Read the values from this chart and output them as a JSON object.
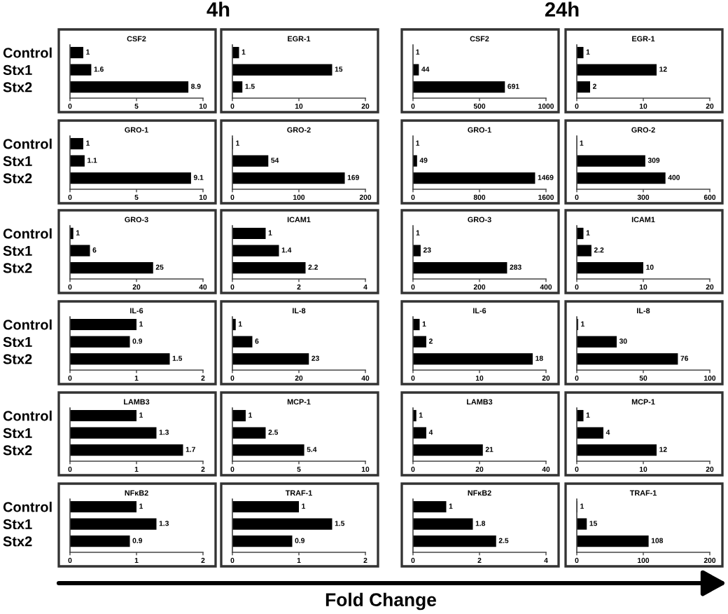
{
  "chart_data": [
    {
      "type": "bar",
      "orientation": "horizontal",
      "title": "CSF2",
      "annotations": [
        "4h"
      ],
      "categories": [
        "Control",
        "Stx1",
        "Stx2"
      ],
      "values": [
        1,
        1.6,
        8.9
      ],
      "color": "#000000",
      "xlim": [
        0,
        10
      ],
      "xticks": [
        0,
        5,
        10
      ],
      "data_labels": true
    },
    {
      "type": "bar",
      "orientation": "horizontal",
      "title": "EGR-1",
      "categories": [
        "Control",
        "Stx1",
        "Stx2"
      ],
      "values": [
        1,
        15,
        1.5
      ],
      "color": "#000000",
      "xlim": [
        0,
        20
      ],
      "xticks": [
        0,
        10,
        20
      ],
      "data_labels": true,
      "tick_labels": "x"
    },
    {
      "type": "bar",
      "orientation": "horizontal",
      "title": "CSF2",
      "annotations": [
        "24h"
      ],
      "categories": [
        "Control",
        "Stx1",
        "Stx2"
      ],
      "values": [
        1,
        44,
        691
      ],
      "color": "#000000",
      "xlim": [
        0,
        1000
      ],
      "xticks": [
        0,
        500,
        1000
      ],
      "data_labels": true,
      "tick_labels": "x"
    },
    {
      "type": "bar",
      "orientation": "horizontal",
      "title": "EGR-1",
      "categories": [
        "Control",
        "Stx1",
        "Stx2"
      ],
      "values": [
        1,
        12,
        2
      ],
      "color": "#000000",
      "xlim": [
        0,
        20
      ],
      "xticks": [
        0,
        10,
        20
      ],
      "data_labels": true,
      "tick_labels": "x"
    },
    {
      "type": "bar",
      "orientation": "horizontal",
      "title": "GRO-1",
      "categories": [
        "Control",
        "Stx1",
        "Stx2"
      ],
      "values": [
        1,
        1.1,
        9.1
      ],
      "color": "#000000",
      "xlim": [
        0,
        10
      ],
      "xticks": [
        0,
        5,
        10
      ],
      "data_labels": true
    },
    {
      "type": "bar",
      "orientation": "horizontal",
      "title": "GRO-2",
      "categories": [
        "Control",
        "Stx1",
        "Stx2"
      ],
      "values": [
        1,
        54,
        169
      ],
      "color": "#000000",
      "xlim": [
        0,
        200
      ],
      "xticks": [
        0,
        100,
        200
      ],
      "data_labels": true,
      "tick_labels": "x"
    },
    {
      "type": "bar",
      "orientation": "horizontal",
      "title": "GRO-1",
      "categories": [
        "Control",
        "Stx1",
        "Stx2"
      ],
      "values": [
        1,
        49,
        1469
      ],
      "color": "#000000",
      "xlim": [
        0,
        1600
      ],
      "xticks": [
        0,
        800,
        1600
      ],
      "data_labels": true,
      "tick_labels": "x"
    },
    {
      "type": "bar",
      "orientation": "horizontal",
      "title": "GRO-2",
      "categories": [
        "Control",
        "Stx1",
        "Stx2"
      ],
      "values": [
        1,
        309,
        400
      ],
      "color": "#000000",
      "xlim": [
        0,
        600
      ],
      "xticks": [
        0,
        300,
        600
      ],
      "data_labels": true,
      "tick_labels": "x"
    },
    {
      "type": "bar",
      "orientation": "horizontal",
      "title": "GRO-3",
      "categories": [
        "Control",
        "Stx1",
        "Stx2"
      ],
      "values": [
        1,
        6,
        25
      ],
      "color": "#000000",
      "xlim": [
        0,
        40
      ],
      "xticks": [
        0,
        20,
        40
      ],
      "data_labels": true
    },
    {
      "type": "bar",
      "orientation": "horizontal",
      "title": "ICAM1",
      "categories": [
        "Control",
        "Stx1",
        "Stx2"
      ],
      "values": [
        1,
        1.4,
        2.2
      ],
      "color": "#000000",
      "xlim": [
        0,
        4
      ],
      "xticks": [
        0,
        2,
        4
      ],
      "data_labels": true,
      "tick_labels": "x"
    },
    {
      "type": "bar",
      "orientation": "horizontal",
      "title": "GRO-3",
      "categories": [
        "Control",
        "Stx1",
        "Stx2"
      ],
      "values": [
        1,
        23,
        283
      ],
      "color": "#000000",
      "xlim": [
        0,
        400
      ],
      "xticks": [
        0,
        200,
        400
      ],
      "data_labels": true,
      "tick_labels": "x"
    },
    {
      "type": "bar",
      "orientation": "horizontal",
      "title": "ICAM1",
      "categories": [
        "Control",
        "Stx1",
        "Stx2"
      ],
      "values": [
        1,
        2.2,
        10
      ],
      "color": "#000000",
      "xlim": [
        0,
        20
      ],
      "xticks": [
        0,
        10,
        20
      ],
      "data_labels": true,
      "tick_labels": "x"
    },
    {
      "type": "bar",
      "orientation": "horizontal",
      "title": "IL-6",
      "categories": [
        "Control",
        "Stx1",
        "Stx2"
      ],
      "values": [
        1,
        0.9,
        1.5
      ],
      "color": "#000000",
      "xlim": [
        0,
        2
      ],
      "xticks": [
        0,
        1,
        2
      ],
      "data_labels": true
    },
    {
      "type": "bar",
      "orientation": "horizontal",
      "title": "IL-8",
      "categories": [
        "Control",
        "Stx1",
        "Stx2"
      ],
      "values": [
        1,
        6,
        23
      ],
      "color": "#000000",
      "xlim": [
        0,
        40
      ],
      "xticks": [
        0,
        20,
        40
      ],
      "data_labels": true,
      "tick_labels": "x"
    },
    {
      "type": "bar",
      "orientation": "horizontal",
      "title": "IL-6",
      "categories": [
        "Control",
        "Stx1",
        "Stx2"
      ],
      "values": [
        1,
        2,
        18
      ],
      "color": "#000000",
      "xlim": [
        0,
        20
      ],
      "xticks": [
        0,
        10,
        20
      ],
      "data_labels": true,
      "tick_labels": "x"
    },
    {
      "type": "bar",
      "orientation": "horizontal",
      "title": "IL-8",
      "categories": [
        "Control",
        "Stx1",
        "Stx2"
      ],
      "values": [
        1,
        30,
        76
      ],
      "color": "#000000",
      "xlim": [
        0,
        100
      ],
      "xticks": [
        0,
        50,
        100
      ],
      "data_labels": true,
      "tick_labels": "x"
    },
    {
      "type": "bar",
      "orientation": "horizontal",
      "title": "LAMB3",
      "categories": [
        "Control",
        "Stx1",
        "Stx2"
      ],
      "values": [
        1,
        1.3,
        1.7
      ],
      "color": "#000000",
      "xlim": [
        0,
        2
      ],
      "xticks": [
        0,
        1,
        2
      ],
      "data_labels": true
    },
    {
      "type": "bar",
      "orientation": "horizontal",
      "title": "MCP-1",
      "categories": [
        "Control",
        "Stx1",
        "Stx2"
      ],
      "values": [
        1,
        2.5,
        5.4
      ],
      "color": "#000000",
      "xlim": [
        0,
        10
      ],
      "xticks": [
        0,
        5,
        10
      ],
      "data_labels": true,
      "tick_labels": "x"
    },
    {
      "type": "bar",
      "orientation": "horizontal",
      "title": "LAMB3",
      "categories": [
        "Control",
        "Stx1",
        "Stx2"
      ],
      "values": [
        1,
        4,
        21
      ],
      "color": "#000000",
      "xlim": [
        0,
        40
      ],
      "xticks": [
        0,
        20,
        40
      ],
      "data_labels": true,
      "tick_labels": "x"
    },
    {
      "type": "bar",
      "orientation": "horizontal",
      "title": "MCP-1",
      "categories": [
        "Control",
        "Stx1",
        "Stx2"
      ],
      "values": [
        1,
        4,
        12
      ],
      "color": "#000000",
      "xlim": [
        0,
        20
      ],
      "xticks": [
        0,
        10,
        20
      ],
      "data_labels": true,
      "tick_labels": "x"
    },
    {
      "type": "bar",
      "orientation": "horizontal",
      "title": "NFκB2",
      "categories": [
        "Control",
        "Stx1",
        "Stx2"
      ],
      "values": [
        1,
        1.3,
        0.9
      ],
      "color": "#000000",
      "xlim": [
        0,
        2
      ],
      "xticks": [
        0,
        1,
        2
      ],
      "data_labels": true
    },
    {
      "type": "bar",
      "orientation": "horizontal",
      "title": "TRAF-1",
      "categories": [
        "Control",
        "Stx1",
        "Stx2"
      ],
      "values": [
        1,
        1.5,
        0.9
      ],
      "color": "#000000",
      "xlim": [
        0,
        2
      ],
      "xticks": [
        0,
        1,
        2
      ],
      "data_labels": true,
      "tick_labels": "x"
    },
    {
      "type": "bar",
      "orientation": "horizontal",
      "title": "NFκB2",
      "categories": [
        "Control",
        "Stx1",
        "Stx2"
      ],
      "values": [
        1,
        1.8,
        2.5
      ],
      "color": "#000000",
      "xlim": [
        0,
        4
      ],
      "xticks": [
        0,
        2,
        4
      ],
      "data_labels": true,
      "tick_labels": "x"
    },
    {
      "type": "bar",
      "orientation": "horizontal",
      "title": "TRAF-1",
      "annotations": [
        "Fold Change"
      ],
      "categories": [
        "Control",
        "Stx1",
        "Stx2"
      ],
      "values": [
        1,
        15,
        108
      ],
      "color": "#000000",
      "xlim": [
        0,
        200
      ],
      "xticks": [
        0,
        100,
        200
      ],
      "data_labels": true,
      "tick_labels": "x"
    }
  ]
}
